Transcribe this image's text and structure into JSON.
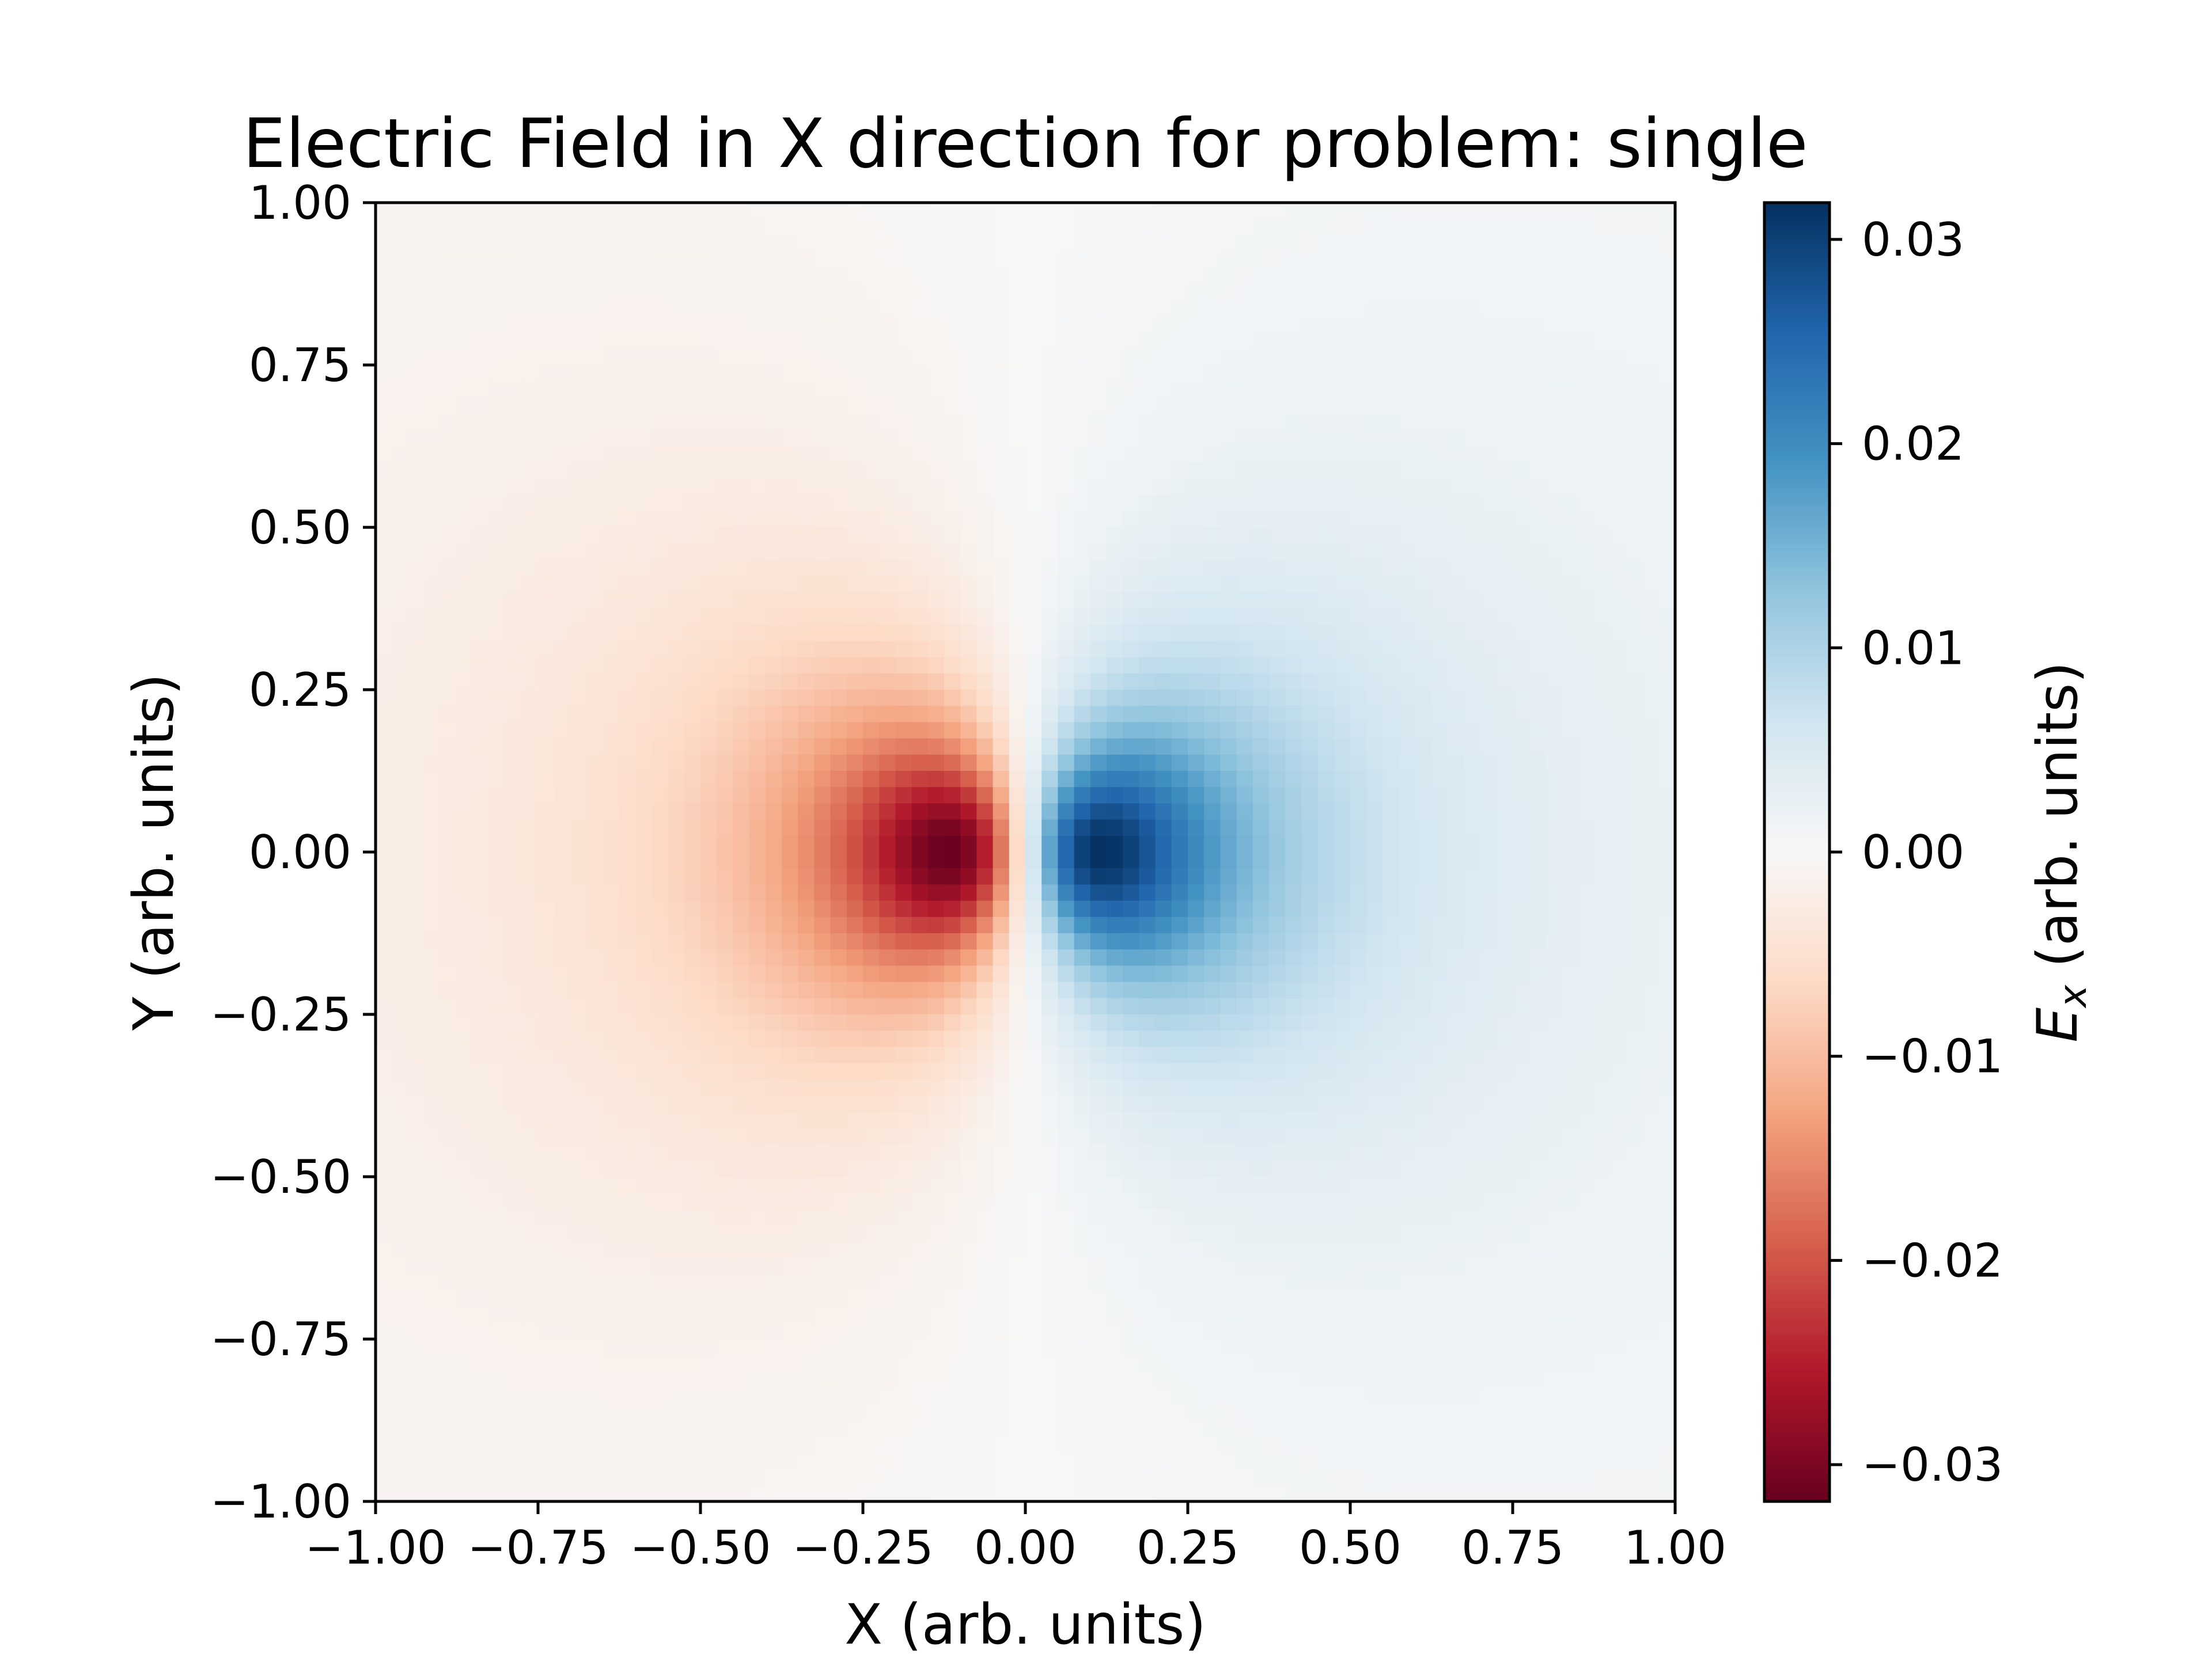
{
  "chart_data": {
    "type": "heatmap",
    "title": "Electric Field in X direction for problem: single",
    "xlabel": "X (arb. units)",
    "ylabel": "Y (arb. units)",
    "xlim": [
      -1.0,
      1.0
    ],
    "ylim": [
      -1.0,
      1.0
    ],
    "x_ticks": [
      -1.0,
      -0.75,
      -0.5,
      -0.25,
      0.0,
      0.25,
      0.5,
      0.75,
      1.0
    ],
    "x_tick_labels": [
      "−1.00",
      "−0.75",
      "−0.50",
      "−0.25",
      "0.00",
      "0.25",
      "0.50",
      "0.75",
      "1.00"
    ],
    "y_ticks": [
      1.0,
      0.75,
      0.5,
      0.25,
      0.0,
      -0.25,
      -0.5,
      -0.75,
      -1.0
    ],
    "y_tick_labels": [
      "1.00",
      "0.75",
      "0.50",
      "0.25",
      "0.00",
      "−0.25",
      "−0.50",
      "−0.75",
      "−1.00"
    ],
    "grid_resolution": [
      80,
      80
    ],
    "field": {
      "description": "Ex of a single point charge at the origin: negative (red) for x<0, positive (blue) for x>0, peak magnitude near (±0.12, 0)",
      "charge_position": [
        0.0,
        0.0
      ],
      "peak_value": 0.0318,
      "peak_offset_x": 0.12
    },
    "colorbar": {
      "label_main": "E",
      "label_sub": "x",
      "label_rest": " (arb. units)",
      "colormap": "RdBu",
      "vmin": -0.0318,
      "vmax": 0.0318,
      "ticks": [
        0.03,
        0.02,
        0.01,
        0.0,
        -0.01,
        -0.02,
        -0.03
      ],
      "tick_labels": [
        "0.03",
        "0.02",
        "0.01",
        "0.00",
        "−0.01",
        "−0.02",
        "−0.03"
      ],
      "stops": [
        "#67001f",
        "#b2182b",
        "#d6604d",
        "#f4a582",
        "#fddbc7",
        "#f7f7f7",
        "#d1e5f0",
        "#92c5de",
        "#4393c3",
        "#2166ac",
        "#053061"
      ]
    }
  }
}
